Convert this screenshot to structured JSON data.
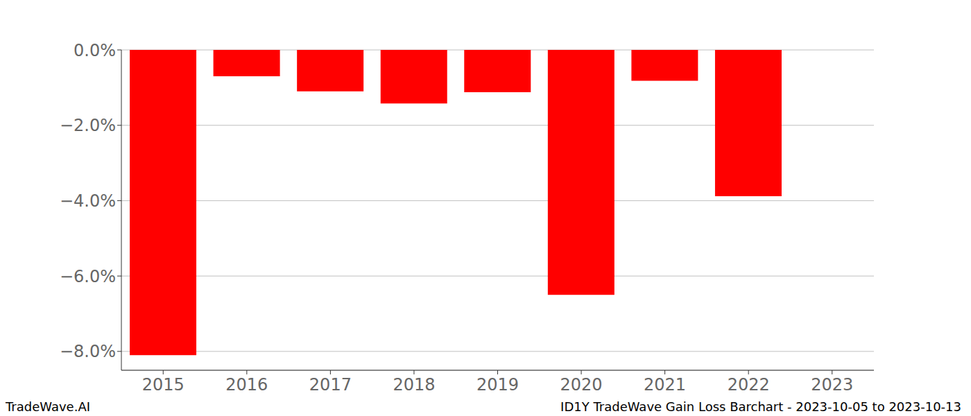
{
  "chart_data": {
    "type": "bar",
    "categories": [
      "2015",
      "2016",
      "2017",
      "2018",
      "2019",
      "2020",
      "2021",
      "2022",
      "2023"
    ],
    "values": [
      -8.1,
      -0.7,
      -1.1,
      -1.42,
      -1.12,
      -6.5,
      -0.82,
      -3.88,
      null
    ],
    "color": "#ff0000",
    "ylim": [
      -8.5,
      0
    ],
    "yticks": [
      {
        "value": -8,
        "label": "−8.0%"
      },
      {
        "value": -6,
        "label": "−6.0%"
      },
      {
        "value": -4,
        "label": "−4.0%"
      },
      {
        "value": -2,
        "label": "−2.0%"
      },
      {
        "value": 0,
        "label": "0.0%"
      }
    ],
    "grid": true,
    "annotations": [
      "TradeWave.AI",
      "ID1Y TradeWave Gain Loss Barchart - 2023-10-05 to 2023-10-13"
    ]
  }
}
